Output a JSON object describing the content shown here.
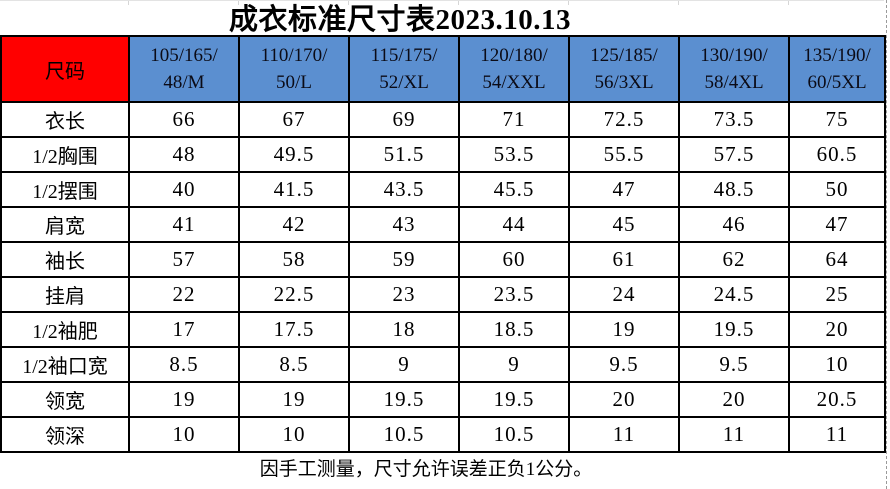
{
  "page": {
    "title": "成衣标准尺寸表2023.10.13",
    "footer_note": "因手工测量，尺寸允许误差正负1公分。"
  },
  "table": {
    "corner_label": "尺码",
    "size_columns": [
      {
        "line1": "105/165/",
        "line2": "48/M"
      },
      {
        "line1": "110/170/",
        "line2": "50/L"
      },
      {
        "line1": "115/175/",
        "line2": "52/XL"
      },
      {
        "line1": "120/180/",
        "line2": "54/XXL"
      },
      {
        "line1": "125/185/",
        "line2": "56/3XL"
      },
      {
        "line1": "130/190/",
        "line2": "58/4XL"
      },
      {
        "line1": "135/190/",
        "line2": "60/5XL"
      }
    ],
    "rows": [
      {
        "label": "衣长",
        "values": [
          "66",
          "67",
          "69",
          "71",
          "72.5",
          "73.5",
          "75"
        ]
      },
      {
        "label": "1/2胸围",
        "values": [
          "48",
          "49.5",
          "51.5",
          "53.5",
          "55.5",
          "57.5",
          "60.5"
        ]
      },
      {
        "label": "1/2摆围",
        "values": [
          "40",
          "41.5",
          "43.5",
          "45.5",
          "47",
          "48.5",
          "50"
        ]
      },
      {
        "label": "肩宽",
        "values": [
          "41",
          "42",
          "43",
          "44",
          "45",
          "46",
          "47"
        ]
      },
      {
        "label": "袖长",
        "values": [
          "57",
          "58",
          "59",
          "60",
          "61",
          "62",
          "64"
        ]
      },
      {
        "label": "挂肩",
        "values": [
          "22",
          "22.5",
          "23",
          "23.5",
          "24",
          "24.5",
          "25"
        ]
      },
      {
        "label": "1/2袖肥",
        "values": [
          "17",
          "17.5",
          "18",
          "18.5",
          "19",
          "19.5",
          "20"
        ]
      },
      {
        "label": "1/2袖口宽",
        "values": [
          "8.5",
          "8.5",
          "9",
          "9",
          "9.5",
          "9.5",
          "10"
        ]
      },
      {
        "label": "领宽",
        "values": [
          "19",
          "19",
          "19.5",
          "19.5",
          "20",
          "20",
          "20.5"
        ]
      },
      {
        "label": "领深",
        "values": [
          "10",
          "10",
          "10.5",
          "10.5",
          "11",
          "11",
          "11"
        ]
      }
    ]
  },
  "colors": {
    "corner_bg": "#FF0000",
    "size_header_bg": "#5B8FD0",
    "border": "#000000",
    "gridline": "#D6D6D6",
    "pagebreak_dash": "#9A9A9A"
  }
}
